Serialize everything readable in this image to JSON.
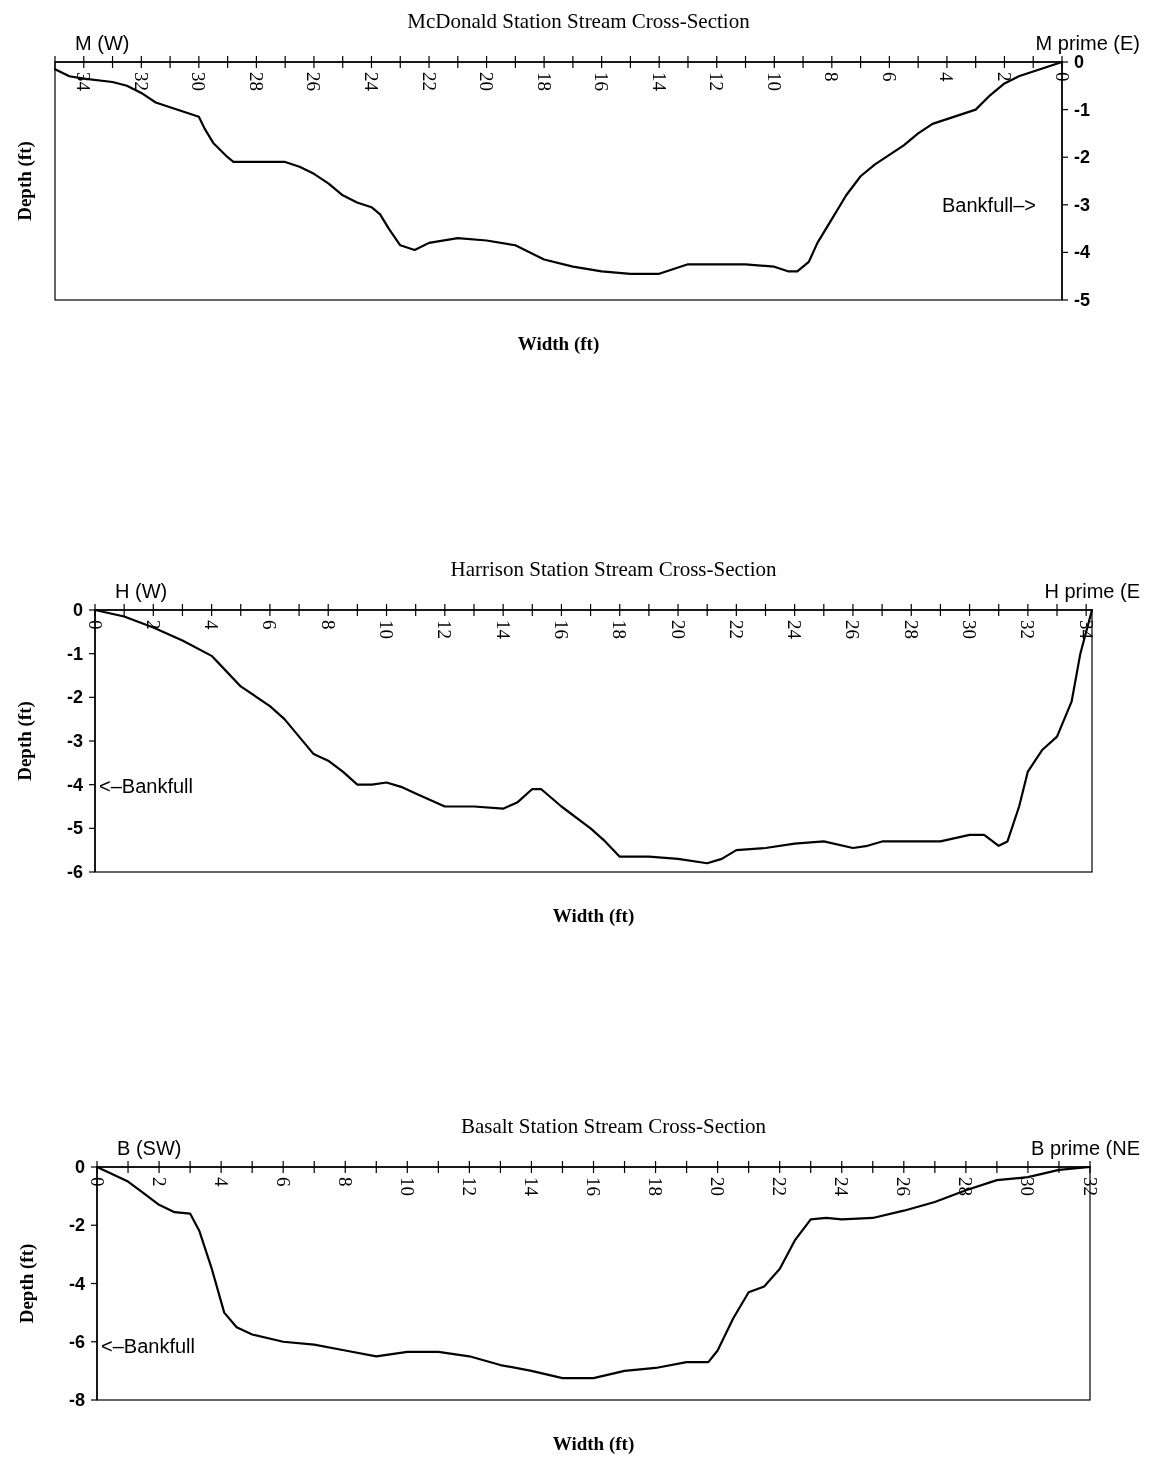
{
  "chart_data": [
    {
      "type": "line",
      "title": "McDonald Station Stream Cross-Section",
      "xlabel": "Width (ft)",
      "ylabel": "Depth (ft)",
      "xlim": [
        35,
        0
      ],
      "xticks": [
        {
          "value": 35,
          "label": null
        },
        34,
        {
          "value": 33,
          "label": null
        },
        32,
        {
          "value": 31,
          "label": null
        },
        30,
        {
          "value": 29,
          "label": null
        },
        28,
        {
          "value": 27,
          "label": null
        },
        26,
        {
          "value": 25,
          "label": null
        },
        24,
        {
          "value": 23,
          "label": null
        },
        22,
        {
          "value": 21,
          "label": null
        },
        20,
        {
          "value": 19,
          "label": null
        },
        18,
        {
          "value": 17,
          "label": null
        },
        16,
        {
          "value": 15,
          "label": null
        },
        14,
        {
          "value": 13,
          "label": null
        },
        12,
        {
          "value": 11,
          "label": null
        },
        10,
        {
          "value": 9,
          "label": null
        },
        8,
        {
          "value": 7,
          "label": null
        },
        6,
        {
          "value": 5,
          "label": null
        },
        4,
        {
          "value": 3,
          "label": null
        },
        2,
        {
          "value": 1,
          "label": null
        },
        0
      ],
      "y2lim": [
        -5,
        0
      ],
      "y2ticks": [
        0,
        -1,
        -2,
        -3,
        -4,
        -5
      ],
      "annotations": [
        "M (W)",
        "M prime (E)",
        "Bankfull–>"
      ],
      "series": [
        {
          "color": "#000000",
          "axis": "y2",
          "x": [
            35,
            34.5,
            34,
            33,
            32.5,
            32,
            31.5,
            31,
            30.5,
            30,
            29.8,
            29.5,
            29,
            28.8,
            28,
            27,
            26.5,
            26,
            25.5,
            25,
            24.5,
            24,
            23.7,
            23.4,
            23,
            22.5,
            22,
            21,
            20,
            19,
            18,
            17,
            16,
            15,
            14,
            13.5,
            13,
            12,
            11,
            10,
            9.5,
            9.2,
            8.8,
            8.5,
            8,
            7.5,
            7,
            6.5,
            6,
            5.5,
            5,
            4.5,
            4,
            3.5,
            3,
            2.5,
            2,
            1.5,
            1,
            0.5,
            0
          ],
          "values": [
            -0.15,
            -0.3,
            -0.35,
            -0.42,
            -0.5,
            -0.65,
            -0.85,
            -0.95,
            -1.05,
            -1.15,
            -1.4,
            -1.7,
            -2.0,
            -2.1,
            -2.1,
            -2.1,
            -2.2,
            -2.35,
            -2.55,
            -2.8,
            -2.95,
            -3.05,
            -3.2,
            -3.5,
            -3.85,
            -3.95,
            -3.8,
            -3.7,
            -3.75,
            -3.85,
            -4.15,
            -4.3,
            -4.4,
            -4.45,
            -4.45,
            -4.35,
            -4.25,
            -4.25,
            -4.25,
            -4.3,
            -4.4,
            -4.4,
            -4.2,
            -3.8,
            -3.3,
            -2.8,
            -2.4,
            -2.15,
            -1.95,
            -1.75,
            -1.5,
            -1.3,
            -1.2,
            -1.1,
            -1.0,
            -0.7,
            -0.45,
            -0.3,
            -0.2,
            -0.1,
            0
          ]
        }
      ]
    },
    {
      "type": "line",
      "title": "Harrison Station Stream Cross-Section",
      "xlabel": "Width (ft)",
      "ylabel": "Depth (ft)",
      "xlim": [
        0,
        34.2
      ],
      "xticks": [
        0,
        {
          "value": 1,
          "label": null
        },
        2,
        {
          "value": 3,
          "label": null
        },
        4,
        {
          "value": 5,
          "label": null
        },
        6,
        {
          "value": 7,
          "label": null
        },
        8,
        {
          "value": 9,
          "label": null
        },
        10,
        {
          "value": 11,
          "label": null
        },
        12,
        {
          "value": 13,
          "label": null
        },
        14,
        {
          "value": 15,
          "label": null
        },
        16,
        {
          "value": 17,
          "label": null
        },
        18,
        {
          "value": 19,
          "label": null
        },
        20,
        {
          "value": 21,
          "label": null
        },
        22,
        {
          "value": 23,
          "label": null
        },
        24,
        {
          "value": 25,
          "label": null
        },
        26,
        {
          "value": 27,
          "label": null
        },
        28,
        {
          "value": 29,
          "label": null
        },
        30,
        {
          "value": 31,
          "label": null
        },
        32,
        {
          "value": 33,
          "label": null
        },
        34
      ],
      "ylim": [
        -6,
        0
      ],
      "yticks": [
        0,
        -1,
        -2,
        -3,
        -4,
        -5,
        -6
      ],
      "annotations": [
        "H (W)",
        "H prime (E",
        "<–Bankfull"
      ],
      "series": [
        {
          "color": "#000000",
          "x": [
            0,
            1,
            2,
            3,
            4,
            4.5,
            5,
            6,
            6.5,
            7,
            7.5,
            8,
            8.5,
            9,
            9.5,
            10,
            10.5,
            11,
            12,
            13,
            14,
            14.5,
            15,
            15.3,
            16,
            17,
            17.5,
            18,
            19,
            20,
            21,
            21.5,
            22,
            23,
            24,
            25,
            26,
            26.5,
            27,
            28,
            29,
            30,
            30.5,
            31,
            31.3,
            31.7,
            32,
            32.5,
            33,
            33.5,
            33.8,
            34,
            34.2
          ],
          "values": [
            0,
            -0.15,
            -0.4,
            -0.7,
            -1.05,
            -1.4,
            -1.75,
            -2.2,
            -2.5,
            -2.9,
            -3.3,
            -3.45,
            -3.7,
            -4.0,
            -4.0,
            -3.95,
            -4.05,
            -4.2,
            -4.5,
            -4.5,
            -4.55,
            -4.4,
            -4.1,
            -4.1,
            -4.5,
            -5.0,
            -5.3,
            -5.65,
            -5.65,
            -5.7,
            -5.8,
            -5.7,
            -5.5,
            -5.45,
            -5.35,
            -5.3,
            -5.45,
            -5.4,
            -5.3,
            -5.3,
            -5.3,
            -5.15,
            -5.15,
            -5.4,
            -5.3,
            -4.5,
            -3.7,
            -3.2,
            -2.9,
            -2.1,
            -1.0,
            -0.5,
            0
          ]
        }
      ]
    },
    {
      "type": "line",
      "title": "Basalt Station Stream Cross-Section",
      "xlabel": "Width (ft)",
      "ylabel": "Depth (ft)",
      "xlim": [
        0,
        32
      ],
      "xticks": [
        0,
        {
          "value": 1,
          "label": null
        },
        2,
        {
          "value": 3,
          "label": null
        },
        4,
        {
          "value": 5,
          "label": null
        },
        6,
        {
          "value": 7,
          "label": null
        },
        8,
        {
          "value": 9,
          "label": null
        },
        10,
        {
          "value": 11,
          "label": null
        },
        12,
        {
          "value": 13,
          "label": null
        },
        14,
        {
          "value": 15,
          "label": null
        },
        16,
        {
          "value": 17,
          "label": null
        },
        18,
        {
          "value": 19,
          "label": null
        },
        20,
        {
          "value": 21,
          "label": null
        },
        22,
        {
          "value": 23,
          "label": null
        },
        24,
        {
          "value": 25,
          "label": null
        },
        26,
        {
          "value": 27,
          "label": null
        },
        28,
        {
          "value": 29,
          "label": null
        },
        30,
        {
          "value": 31,
          "label": null
        },
        32
      ],
      "ylim": [
        -8,
        0
      ],
      "yticks": [
        0,
        -2,
        -4,
        -6,
        -8
      ],
      "annotations": [
        "B (SW)",
        "B prime (NE",
        "<–Bankfull"
      ],
      "series": [
        {
          "color": "#000000",
          "x": [
            0,
            1,
            1.5,
            2,
            2.5,
            3,
            3.3,
            3.7,
            4.1,
            4.5,
            5,
            6,
            7,
            8,
            9,
            10,
            11,
            12,
            13,
            14,
            15,
            16,
            17,
            18,
            19,
            19.7,
            20,
            20.5,
            21,
            21.5,
            22,
            22.5,
            23,
            23.5,
            24,
            25,
            26,
            27,
            28,
            29,
            30,
            31,
            32
          ],
          "values": [
            0,
            -0.5,
            -0.9,
            -1.3,
            -1.55,
            -1.6,
            -2.2,
            -3.5,
            -5.0,
            -5.5,
            -5.75,
            -6.0,
            -6.1,
            -6.3,
            -6.5,
            -6.35,
            -6.35,
            -6.5,
            -6.8,
            -7.0,
            -7.25,
            -7.25,
            -7.0,
            -6.9,
            -6.7,
            -6.7,
            -6.3,
            -5.2,
            -4.3,
            -4.1,
            -3.5,
            -2.5,
            -1.8,
            -1.75,
            -1.8,
            -1.75,
            -1.5,
            -1.2,
            -0.8,
            -0.45,
            -0.35,
            -0.1,
            0
          ]
        }
      ]
    }
  ]
}
